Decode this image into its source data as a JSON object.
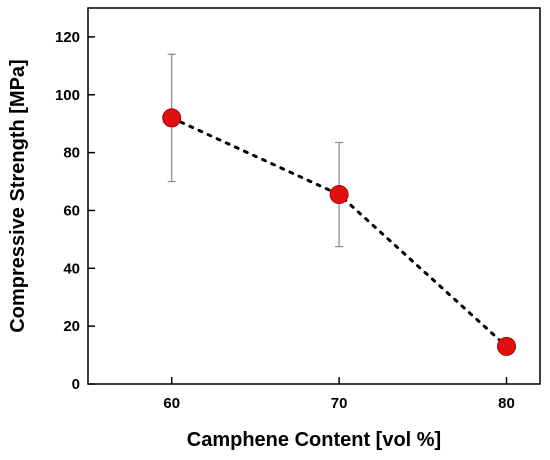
{
  "chart_data": {
    "type": "scatter",
    "title": "",
    "xlabel": "Camphene Content [vol %]",
    "ylabel": "Compressive Strength [MPa]",
    "xlim": [
      55,
      82
    ],
    "ylim": [
      0,
      130
    ],
    "x_ticks": [
      60,
      70,
      80
    ],
    "y_ticks": [
      0,
      20,
      40,
      60,
      80,
      100,
      120
    ],
    "grid": false,
    "legend": "none",
    "marker_color": "#e01010",
    "line_color": "#000000",
    "line_style": "dotted",
    "series": [
      {
        "x": [
          60,
          70,
          80
        ],
        "y": [
          92,
          65.5,
          13
        ],
        "error": [
          [
            70,
            114
          ],
          [
            47.5,
            83.5
          ],
          [
            11,
            15
          ]
        ]
      }
    ]
  }
}
